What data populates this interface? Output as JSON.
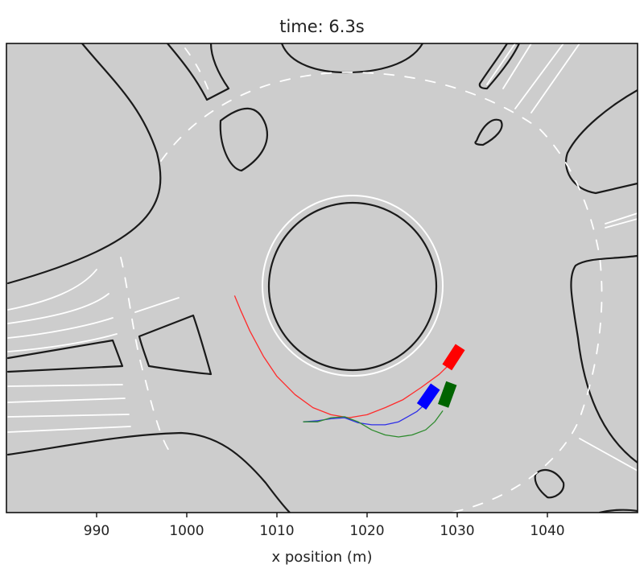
{
  "figure": {
    "title": "time: 6.3s",
    "xlabel": "x position (m)"
  },
  "chart_data": {
    "type": "line",
    "title": "time: 6.3s",
    "xlabel": "x position (m)",
    "ylabel": "",
    "xlim": [
      980.0,
      1050.0
    ],
    "ylim": [
      -1052.0,
      -1005.5
    ],
    "xticks": [
      990,
      1000,
      1010,
      1020,
      1030,
      1040
    ],
    "xtick_labels": [
      "990",
      "1000",
      "1010",
      "1020",
      "1030",
      "1040"
    ],
    "grid": false,
    "legend": false,
    "background_color": "#cdcdcd",
    "series": [
      {
        "color": "#ff2b2b",
        "points": [
          [
            1005.3,
            -1030.5
          ],
          [
            1006.0,
            -1032.0
          ],
          [
            1007.0,
            -1034.0
          ],
          [
            1008.5,
            -1036.5
          ],
          [
            1010.0,
            -1038.5
          ],
          [
            1012.0,
            -1040.3
          ],
          [
            1014.0,
            -1041.6
          ],
          [
            1016.0,
            -1042.3
          ],
          [
            1018.0,
            -1042.6
          ],
          [
            1020.0,
            -1042.3
          ],
          [
            1022.0,
            -1041.6
          ],
          [
            1024.0,
            -1040.8
          ],
          [
            1026.0,
            -1039.6
          ],
          [
            1028.0,
            -1038.3
          ],
          [
            1029.5,
            -1037.0
          ]
        ]
      },
      {
        "color": "#2e2ee8",
        "points": [
          [
            1012.9,
            -1043.0
          ],
          [
            1014.5,
            -1042.9
          ],
          [
            1016.0,
            -1042.7
          ],
          [
            1017.5,
            -1042.6
          ],
          [
            1019.0,
            -1043.1
          ],
          [
            1020.5,
            -1043.3
          ],
          [
            1022.0,
            -1043.3
          ],
          [
            1023.5,
            -1043.0
          ],
          [
            1024.5,
            -1042.5
          ],
          [
            1025.5,
            -1042.0
          ],
          [
            1026.5,
            -1041.2
          ]
        ]
      },
      {
        "color": "#2e8b2e",
        "points": [
          [
            1012.9,
            -1043.0
          ],
          [
            1014.5,
            -1043.0
          ],
          [
            1016.0,
            -1042.6
          ],
          [
            1017.5,
            -1042.5
          ],
          [
            1019.0,
            -1043.0
          ],
          [
            1020.5,
            -1043.8
          ],
          [
            1022.0,
            -1044.3
          ],
          [
            1023.5,
            -1044.5
          ],
          [
            1025.0,
            -1044.3
          ],
          [
            1026.5,
            -1043.8
          ],
          [
            1027.5,
            -1043.0
          ],
          [
            1028.4,
            -1041.9
          ]
        ]
      }
    ],
    "vehicles": [
      {
        "color": "#ff0000",
        "x": 1029.6,
        "y": -1036.6,
        "heading_deg": 57
      },
      {
        "color": "#0000ff",
        "x": 1026.8,
        "y": -1040.5,
        "heading_deg": 55
      },
      {
        "color": "#006400",
        "x": 1028.9,
        "y": -1040.3,
        "heading_deg": 70
      }
    ],
    "roundabout": {
      "center": [
        1019.2,
        -1029.8
      ],
      "island_radius": 8.5,
      "white_ring_radius": 9.6
    }
  }
}
